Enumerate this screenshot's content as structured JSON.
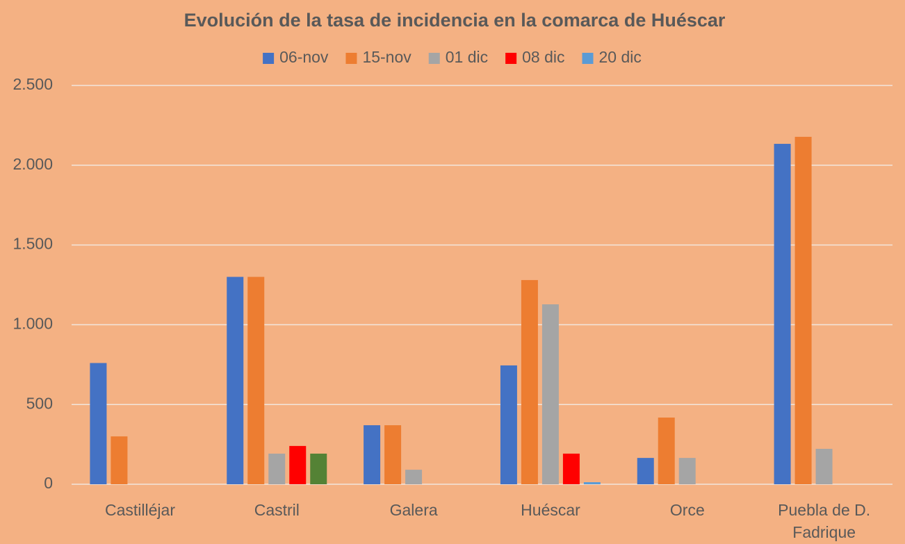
{
  "chart_data": {
    "type": "bar",
    "title": "Evolución de la tasa de incidencia en la comarca de Huéscar",
    "categories": [
      "Castilléjar",
      "Castril",
      "Galera",
      "Huéscar",
      "Orce",
      "Puebla de D. Fadrique"
    ],
    "series": [
      {
        "name": "06-nov",
        "color": "#4472c4",
        "values": [
          760,
          1300,
          370,
          745,
          165,
          2134
        ]
      },
      {
        "name": "15-nov",
        "color": "#ed7d31",
        "values": [
          300,
          1300,
          370,
          1280,
          418,
          2178
        ]
      },
      {
        "name": "01 dic",
        "color": "#a5a5a5",
        "values": [
          null,
          192,
          91,
          1128,
          165,
          222
        ]
      },
      {
        "name": "08 dic",
        "color": "#ff0000",
        "values": [
          null,
          240,
          null,
          192,
          null,
          null
        ]
      },
      {
        "name": "20 dic",
        "color": "#5b9bd5",
        "colors": [
          "#5b9bd5",
          "#548235",
          "#5b9bd5",
          "#5b9bd5",
          "#5b9bd5",
          "#5b9bd5"
        ],
        "values": [
          null,
          192,
          null,
          13,
          null,
          null
        ]
      }
    ],
    "ylim": [
      0,
      2500
    ],
    "yticks": [
      0,
      500,
      {
        "value": 1000,
        "label": "1.000"
      },
      {
        "value": 1500,
        "label": "1.500"
      },
      {
        "value": 2000,
        "label": "2.000"
      },
      {
        "value": 2500,
        "label": "2.500"
      }
    ],
    "grid": true,
    "legend": "top"
  }
}
